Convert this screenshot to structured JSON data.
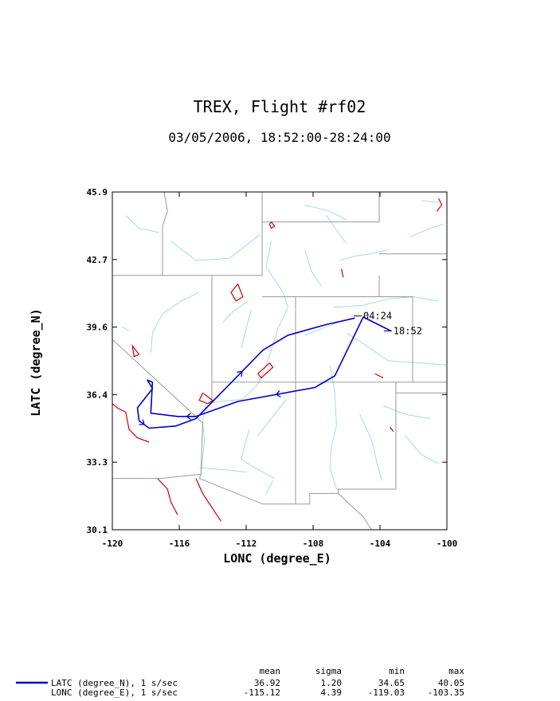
{
  "title": "TREX, Flight #rf02",
  "subtitle": "03/05/2006, 18:52:00-28:24:00",
  "colors": {
    "track": "#0000cc",
    "borders": "#999999",
    "rivers": "#a8d8e6",
    "lakes": "#cc0000",
    "frame": "#000000"
  },
  "chart_data": {
    "type": "line",
    "xlabel": "LONC (degree_E)",
    "ylabel": "LATC (degree_N)",
    "xlim": [
      -120,
      -100
    ],
    "ylim": [
      30.1,
      45.9
    ],
    "xticks": [
      "-120",
      "-116",
      "-112",
      "-108",
      "-104",
      "-100"
    ],
    "yticks": [
      "30.1",
      "33.3",
      "36.4",
      "39.6",
      "42.7",
      "45.9"
    ],
    "annotations": [
      {
        "text": "18:52",
        "lon": -103.2,
        "lat": 39.4
      },
      {
        "text": "04:24",
        "lon": -105.0,
        "lat": 40.1
      }
    ],
    "series": [
      {
        "name": "LATC (degree_N), 1 s/sec",
        "track": [
          [
            -103.35,
            39.4
          ],
          [
            -105.0,
            40.05
          ],
          [
            -106.7,
            37.3
          ],
          [
            -107.9,
            36.75
          ],
          [
            -112.5,
            36.1
          ],
          [
            -115.0,
            35.4
          ],
          [
            -116.1,
            35.4
          ],
          [
            -117.7,
            35.55
          ],
          [
            -117.6,
            37.0
          ],
          [
            -117.9,
            37.1
          ],
          [
            -117.6,
            36.7
          ],
          [
            -118.2,
            36.1
          ],
          [
            -118.5,
            35.8
          ],
          [
            -118.4,
            35.2
          ],
          [
            -117.8,
            34.85
          ],
          [
            -116.2,
            34.95
          ],
          [
            -115.0,
            35.3
          ],
          [
            -113.5,
            36.5
          ],
          [
            -111.0,
            38.5
          ],
          [
            -109.5,
            39.2
          ],
          [
            -107.2,
            39.7
          ],
          [
            -105.5,
            40.0
          ]
        ]
      }
    ]
  },
  "map_features": {
    "state_borders": [
      [
        [
          -120,
          42.0
        ],
        [
          -111.05,
          42.0
        ],
        [
          -111.05,
          45.9
        ]
      ],
      [
        [
          -111.05,
          44.5
        ],
        [
          -104.05,
          44.5
        ],
        [
          -104.05,
          45.9
        ]
      ],
      [
        [
          -111.05,
          41.0
        ],
        [
          -102.05,
          41.0
        ],
        [
          -102.05,
          37.0
        ],
        [
          -100,
          37.0
        ]
      ],
      [
        [
          -114.05,
          42.0
        ],
        [
          -114.05,
          36.2
        ]
      ],
      [
        [
          -120,
          39.0
        ],
        [
          -114.6,
          35.1
        ]
      ],
      [
        [
          -114.05,
          37.0
        ],
        [
          -102.05,
          37.0
        ]
      ],
      [
        [
          -109.05,
          41.0
        ],
        [
          -109.05,
          31.3
        ],
        [
          -108.2,
          31.3
        ],
        [
          -108.2,
          31.8
        ],
        [
          -106.5,
          31.8
        ],
        [
          -106.5,
          32.0
        ],
        [
          -103.05,
          32.0
        ],
        [
          -103.05,
          37.0
        ]
      ],
      [
        [
          -114.6,
          35.1
        ],
        [
          -114.7,
          32.7
        ],
        [
          -114.8,
          32.5
        ],
        [
          -111.0,
          31.3
        ],
        [
          -109.05,
          31.3
        ]
      ],
      [
        [
          -120,
          32.5
        ],
        [
          -117.1,
          32.5
        ],
        [
          -114.7,
          32.7
        ]
      ],
      [
        [
          -116.9,
          45.9
        ],
        [
          -116.7,
          45.0
        ],
        [
          -117.0,
          44.3
        ],
        [
          -117.0,
          42.0
        ]
      ],
      [
        [
          -104.05,
          43.0
        ],
        [
          -100,
          43.0
        ]
      ],
      [
        [
          -104.05,
          42.0
        ],
        [
          -104.05,
          41.0
        ]
      ],
      [
        [
          -106.5,
          31.8
        ],
        [
          -105.0,
          30.7
        ],
        [
          -104.5,
          30.1
        ]
      ],
      [
        [
          -103.05,
          36.5
        ],
        [
          -100,
          36.5
        ]
      ]
    ],
    "rivers": [
      [
        [
          -119.2,
          44.8
        ],
        [
          -118.4,
          44.2
        ],
        [
          -117.2,
          44.0
        ]
      ],
      [
        [
          -116.5,
          43.6
        ],
        [
          -115.0,
          42.7
        ],
        [
          -113.0,
          42.8
        ],
        [
          -112.0,
          43.4
        ],
        [
          -111.2,
          43.9
        ]
      ],
      [
        [
          -110.5,
          43.6
        ],
        [
          -110.8,
          42.4
        ],
        [
          -109.8,
          41.2
        ],
        [
          -109.5,
          40.5
        ],
        [
          -110.1,
          39.5
        ],
        [
          -110.5,
          38.5
        ],
        [
          -110.9,
          37.6
        ],
        [
          -111.3,
          36.9
        ],
        [
          -112.2,
          36.2
        ],
        [
          -113.5,
          36.1
        ],
        [
          -114.4,
          36.0
        ],
        [
          -114.6,
          35.2
        ],
        [
          -114.5,
          34.2
        ],
        [
          -114.7,
          32.7
        ]
      ],
      [
        [
          -108.5,
          43.2
        ],
        [
          -108.1,
          42.2
        ],
        [
          -107.5,
          41.5
        ]
      ],
      [
        [
          -106.4,
          42.7
        ],
        [
          -105.5,
          42.9
        ],
        [
          -104.6,
          43.0
        ],
        [
          -103.5,
          43.2
        ]
      ],
      [
        [
          -107.2,
          44.8
        ],
        [
          -106.5,
          44.0
        ],
        [
          -106.0,
          43.5
        ]
      ],
      [
        [
          -108.5,
          45.3
        ],
        [
          -107.0,
          45.0
        ],
        [
          -106.0,
          44.6
        ]
      ],
      [
        [
          -106.8,
          40.5
        ],
        [
          -105.0,
          40.6
        ],
        [
          -103.5,
          40.9
        ],
        [
          -102.0,
          41.0
        ],
        [
          -100.5,
          40.8
        ]
      ],
      [
        [
          -106.0,
          39.3
        ],
        [
          -104.8,
          38.7
        ],
        [
          -103.5,
          38.0
        ],
        [
          -101.5,
          37.9
        ],
        [
          -100,
          37.8
        ]
      ],
      [
        [
          -107.0,
          37.8
        ],
        [
          -106.7,
          36.5
        ],
        [
          -106.6,
          35.0
        ],
        [
          -106.9,
          34.0
        ],
        [
          -107.0,
          33.0
        ],
        [
          -106.6,
          32.0
        ]
      ],
      [
        [
          -105.2,
          35.5
        ],
        [
          -104.5,
          34.3
        ],
        [
          -104.2,
          33.3
        ],
        [
          -103.9,
          32.4
        ]
      ],
      [
        [
          -103.8,
          35.9
        ],
        [
          -102.5,
          35.5
        ],
        [
          -101.0,
          35.3
        ]
      ],
      [
        [
          -109.6,
          36.2
        ],
        [
          -110.6,
          35.2
        ],
        [
          -111.3,
          34.5
        ]
      ],
      [
        [
          -111.8,
          34.8
        ],
        [
          -112.1,
          34.0
        ],
        [
          -112.3,
          33.4
        ],
        [
          -111.5,
          33.0
        ],
        [
          -110.3,
          32.5
        ]
      ],
      [
        [
          -117.7,
          38.4
        ],
        [
          -117.6,
          39.3
        ],
        [
          -117.0,
          40.2
        ],
        [
          -115.9,
          40.8
        ],
        [
          -114.8,
          41.2
        ]
      ],
      [
        [
          -119.4,
          39.6
        ],
        [
          -119.0,
          39.4
        ]
      ],
      [
        [
          -113.4,
          39.8
        ],
        [
          -112.8,
          40.3
        ],
        [
          -111.9,
          40.8
        ]
      ],
      [
        [
          -112.3,
          38.6
        ],
        [
          -112.0,
          39.5
        ],
        [
          -111.7,
          40.4
        ]
      ],
      [
        [
          -108.5,
          39.2
        ],
        [
          -107.5,
          39.5
        ],
        [
          -106.5,
          39.8
        ]
      ],
      [
        [
          -102.2,
          43.8
        ],
        [
          -101.0,
          44.2
        ],
        [
          -100.2,
          44.4
        ]
      ],
      [
        [
          -101.5,
          45.5
        ],
        [
          -100.5,
          45.4
        ]
      ],
      [
        [
          -102.5,
          34.5
        ],
        [
          -101.5,
          33.6
        ],
        [
          -100.5,
          33.2
        ]
      ],
      [
        [
          -110.8,
          31.8
        ],
        [
          -110.4,
          32.4
        ]
      ],
      [
        [
          -114.8,
          33.0
        ],
        [
          -113.2,
          32.9
        ],
        [
          -112.0,
          32.8
        ]
      ]
    ],
    "lakes": [
      [
        [
          -112.5,
          41.6
        ],
        [
          -112.2,
          41.0
        ],
        [
          -112.6,
          40.8
        ],
        [
          -112.9,
          41.2
        ],
        [
          -112.5,
          41.6
        ]
      ],
      [
        [
          -114.6,
          36.5
        ],
        [
          -114.0,
          36.15
        ],
        [
          -114.3,
          36.0
        ],
        [
          -114.8,
          36.15
        ],
        [
          -114.6,
          36.5
        ]
      ],
      [
        [
          -111.3,
          37.4
        ],
        [
          -110.6,
          37.9
        ],
        [
          -110.4,
          37.7
        ],
        [
          -111.1,
          37.2
        ],
        [
          -111.3,
          37.4
        ]
      ],
      [
        [
          -110.5,
          44.5
        ],
        [
          -110.3,
          44.3
        ],
        [
          -110.5,
          44.2
        ],
        [
          -110.6,
          44.4
        ],
        [
          -110.5,
          44.5
        ]
      ],
      [
        [
          -118.4,
          38.3
        ],
        [
          -118.7,
          38.2
        ],
        [
          -118.8,
          38.7
        ],
        [
          -118.4,
          38.3
        ]
      ],
      [
        [
          -120,
          36.0
        ],
        [
          -119.7,
          35.8
        ],
        [
          -119.2,
          35.6
        ],
        [
          -119.0,
          34.8
        ],
        [
          -118.5,
          34.4
        ],
        [
          -117.8,
          34.2
        ]
      ],
      [
        [
          -117.3,
          32.5
        ],
        [
          -116.7,
          32.0
        ],
        [
          -116.5,
          31.4
        ],
        [
          -116.1,
          30.8
        ]
      ],
      [
        [
          -115.0,
          32.5
        ],
        [
          -114.6,
          31.8
        ],
        [
          -114.1,
          31.2
        ],
        [
          -113.5,
          30.5
        ]
      ],
      [
        [
          -106.3,
          42.3
        ],
        [
          -106.2,
          41.9
        ]
      ],
      [
        [
          -104.3,
          37.4
        ],
        [
          -103.8,
          37.2
        ]
      ],
      [
        [
          -100.5,
          45.6
        ],
        [
          -100.3,
          45.3
        ],
        [
          -100.6,
          45.0
        ]
      ],
      [
        [
          -103.4,
          34.9
        ],
        [
          -103.2,
          34.7
        ]
      ]
    ]
  },
  "stats": {
    "headers": [
      "mean",
      "sigma",
      "min",
      "max"
    ],
    "rows": [
      {
        "label": "LATC (degree_N), 1 s/sec",
        "mean": "36.92",
        "sigma": "1.20",
        "min": "34.65",
        "max": "40.05"
      },
      {
        "label": "LONC (degree_E), 1 s/sec",
        "mean": "-115.12",
        "sigma": "4.39",
        "min": "-119.03",
        "max": "-103.35"
      }
    ]
  }
}
